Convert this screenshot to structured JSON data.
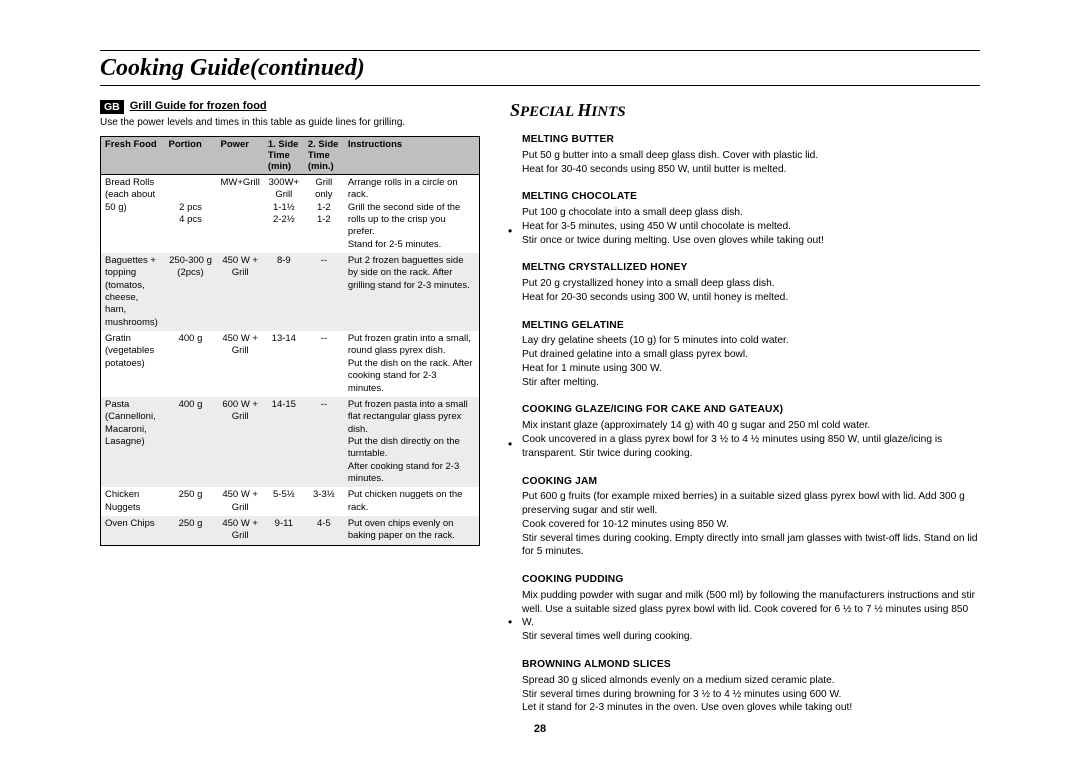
{
  "page_title": "Cooking Guide(continued)",
  "page_number": "28",
  "gb_label": "GB",
  "grill": {
    "title": "Grill Guide for frozen food",
    "subtitle": "Use the power levels and times in this table as guide lines for grilling.",
    "headers": {
      "food": "Fresh Food",
      "portion": "Portion",
      "power": "Power",
      "side1": "1. Side\nTime\n(min)",
      "side2": "2. Side\nTime\n(min.)",
      "instructions": "Instructions"
    },
    "rows": [
      {
        "food": "Bread Rolls\n(each about\n 50 g)",
        "portion": "\n\n2 pcs\n4 pcs",
        "power": "MW+Grill",
        "side1": "300W+\nGrill\n1-1½\n2-2½",
        "side2": "Grill\nonly\n1-2\n1-2",
        "instructions": "Arrange rolls in a circle on rack.\nGrill the second side of the rolls up to the crisp you prefer.\nStand for 2-5 minutes.",
        "alt": false
      },
      {
        "food": "Baguettes +\ntopping\n(tomatos,\ncheese, ham,\nmushrooms)",
        "portion": "250-300 g\n(2pcs)",
        "power": "450 W +\nGrill",
        "side1": "8-9",
        "side2": "--",
        "instructions": "Put 2 frozen baguettes side by side on the rack. After grilling stand for 2-3 minutes.",
        "alt": true
      },
      {
        "food": "Gratin\n(vegetables\npotatoes)",
        "portion": "400 g",
        "power": "450 W +\nGrill",
        "side1": "13-14",
        "side2": "--",
        "instructions": "Put frozen gratin into a small, round glass pyrex dish.\nPut the dish on the rack. After cooking stand for 2-3 minutes.",
        "alt": false
      },
      {
        "food": "Pasta\n(Cannelloni,\nMacaroni,\nLasagne)",
        "portion": "400 g",
        "power": "600 W +\nGrill",
        "side1": "14-15",
        "side2": "--",
        "instructions": "Put frozen pasta into a small flat rectangular glass pyrex dish.\nPut the dish directly on the turntable.\nAfter cooking stand for 2-3 minutes.",
        "alt": true
      },
      {
        "food": "Chicken\nNuggets",
        "portion": "250 g",
        "power": "450 W +\nGrill",
        "side1": "5-5½",
        "side2": "3-3½",
        "instructions": "Put chicken nuggets on the rack.",
        "alt": false
      },
      {
        "food": "Oven Chips",
        "portion": "250 g",
        "power": "450 W +\nGrill",
        "side1": "9-11",
        "side2": "4-5",
        "instructions": "Put oven chips evenly on baking paper on the rack.",
        "alt": true
      }
    ]
  },
  "hints": {
    "title": "Special Hints",
    "items": [
      {
        "title": "MELTING BUTTER",
        "body": "Put 50 g butter into a small deep glass dish. Cover with plastic lid.\nHeat for 30-40 seconds using 850 W, until butter is melted.",
        "bullet": false
      },
      {
        "title": "MELTING CHOCOLATE",
        "body": "Put 100 g chocolate into a small deep glass dish.\nHeat for 3-5 minutes, using 450 W until chocolate is melted.\nStir once or twice during melting. Use oven gloves while taking out!",
        "bullet": true
      },
      {
        "title": "MELTNG CRYSTALLIZED HONEY",
        "body": "Put 20 g crystallized honey into a small deep glass dish.\nHeat for 20-30 seconds using 300 W, until honey is melted.",
        "bullet": false
      },
      {
        "title": "MELTING GELATINE",
        "body": "Lay dry gelatine sheets (10 g) for 5 minutes into cold water.\nPut drained gelatine into a small glass pyrex bowl.\nHeat for 1 minute using 300 W.\nStir after melting.",
        "bullet": false
      },
      {
        "title": "COOKING GLAZE/ICING FOR CAKE AND GATEAUX)",
        "body": "Mix instant glaze (approximately 14 g) with 40 g sugar and 250 ml cold water.\nCook uncovered in a glass pyrex bowl for 3 ½ to 4 ½ minutes using 850 W, until glaze/icing is transparent. Stir twice during cooking.",
        "bullet": true
      },
      {
        "title": "COOKING JAM",
        "body": "Put 600 g fruits (for example mixed berries) in a suitable sized glass pyrex bowl with lid. Add 300 g preserving sugar and stir well.\nCook covered for 10-12 minutes using 850 W.\nStir several times during cooking. Empty directly into small jam glasses with twist-off lids. Stand on lid for 5 minutes.",
        "bullet": false
      },
      {
        "title": "COOKING PUDDING",
        "body": "Mix pudding powder with sugar and milk (500 ml) by following the manufacturers instructions and stir well. Use a suitable sized glass pyrex bowl with lid. Cook covered for 6 ½ to 7 ½ minutes using 850 W.\nStir several times well during cooking.",
        "bullet": true
      },
      {
        "title": "BROWNING ALMOND SLICES",
        "body": "Spread 30 g sliced almonds evenly on a medium sized ceramic plate.\nStir several times during browning for 3 ½ to 4 ½ minutes using 600 W.\nLet it stand for 2-3 minutes in the oven. Use oven gloves while taking out!",
        "bullet": false
      }
    ]
  }
}
